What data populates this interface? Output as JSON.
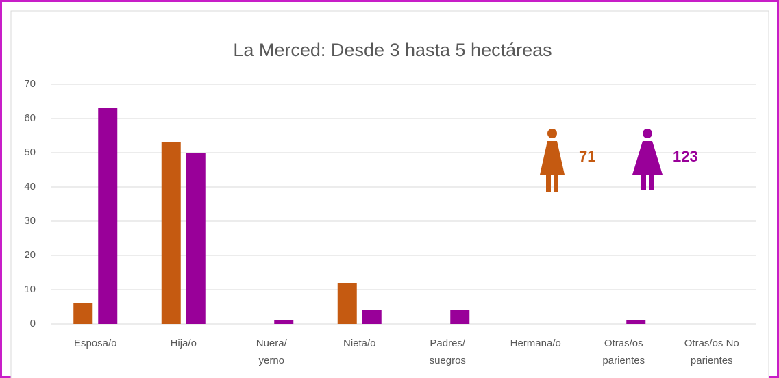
{
  "chart_data": {
    "type": "bar",
    "title": "La Merced: Desde 3 hasta 5 hectáreas",
    "categories": [
      [
        "Esposa/o"
      ],
      [
        "Hija/o"
      ],
      [
        "Nuera/",
        "yerno"
      ],
      [
        "Nieta/o"
      ],
      [
        "Padres/",
        "suegros"
      ],
      [
        "Hermana/o"
      ],
      [
        "Otras/os",
        "parientes"
      ],
      [
        "Otras/os No",
        "parientes"
      ]
    ],
    "series": [
      {
        "color": "#c55a11",
        "values": [
          6,
          53,
          0,
          12,
          0,
          0,
          0,
          0
        ]
      },
      {
        "color": "#990099",
        "values": [
          63,
          50,
          1,
          4,
          4,
          0,
          1,
          0
        ]
      }
    ],
    "totals": [
      {
        "label": "71",
        "color": "#c55a11"
      },
      {
        "label": "123",
        "color": "#990099"
      }
    ],
    "ylim": [
      0,
      70
    ],
    "yticks": [
      0,
      10,
      20,
      30,
      40,
      50,
      60,
      70
    ],
    "grid": true
  }
}
